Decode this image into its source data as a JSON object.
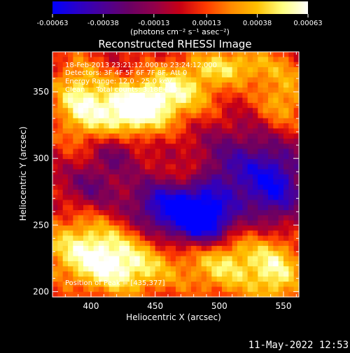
{
  "colorbar": {
    "tick_labels": [
      "-0.00063",
      "-0.00038",
      "-0.00013",
      "0.00013",
      "0.00038",
      "0.00063"
    ],
    "tick_values": [
      -0.00063,
      -0.00038,
      -0.00013,
      0.00013,
      0.00038,
      0.00063
    ],
    "range": [
      -0.00063,
      0.00063
    ],
    "units_label": "(photons cm⁻² s⁻¹ asec⁻²)",
    "colors": [
      "#0000ff",
      "#2a00c8",
      "#4b0096",
      "#6a0064",
      "#92004a",
      "#c80014",
      "#ff3a00",
      "#ff8a00",
      "#ffc000",
      "#ffff80",
      "#ffffff"
    ]
  },
  "chart_data": {
    "type": "heatmap",
    "title": "Reconstructed RHESSI Image",
    "xlabel": "Heliocentric X (arcsec)",
    "ylabel": "Heliocentric Y (arcsec)",
    "xlim": [
      370,
      562
    ],
    "ylim": [
      196,
      380
    ],
    "x_ticks": [
      400,
      450,
      500,
      550
    ],
    "y_ticks": [
      200,
      250,
      300,
      350
    ],
    "x_tick_labels": [
      "400",
      "450",
      "500",
      "550"
    ],
    "y_tick_labels": [
      "200",
      "250",
      "300",
      "350"
    ],
    "annotations": [
      "18-Feb-2013 23:21:12.000 to 23:24:12.000",
      "Detectors: 3F 4F 5F 6F 7F 8F, Att 0",
      "Energy Range: 12.0 - 25.0 keV",
      "Clean     Total counts: 3.18E+03"
    ],
    "peak_label": "Position of Peak = [435,377]",
    "peak": [
      435,
      377
    ],
    "blobs": [
      {
        "x": 430,
        "y": 335,
        "amp": 0.00063,
        "sx": 22,
        "sy": 14
      },
      {
        "x": 390,
        "y": 345,
        "amp": 0.00045,
        "sx": 15,
        "sy": 22
      },
      {
        "x": 465,
        "y": 350,
        "amp": 0.00045,
        "sx": 25,
        "sy": 14
      },
      {
        "x": 510,
        "y": 370,
        "amp": 0.0004,
        "sx": 25,
        "sy": 10
      },
      {
        "x": 550,
        "y": 345,
        "amp": 0.00035,
        "sx": 15,
        "sy": 18
      },
      {
        "x": 400,
        "y": 235,
        "amp": 0.00048,
        "sx": 30,
        "sy": 16
      },
      {
        "x": 425,
        "y": 215,
        "amp": 0.00045,
        "sx": 30,
        "sy": 14
      },
      {
        "x": 505,
        "y": 222,
        "amp": 0.00045,
        "sx": 22,
        "sy": 18
      },
      {
        "x": 545,
        "y": 215,
        "amp": 0.00045,
        "sx": 15,
        "sy": 20
      },
      {
        "x": 475,
        "y": 290,
        "amp": 0.00025,
        "sx": 10,
        "sy": 8
      },
      {
        "x": 465,
        "y": 262,
        "amp": -0.00063,
        "sx": 25,
        "sy": 15
      },
      {
        "x": 490,
        "y": 250,
        "amp": -0.00055,
        "sx": 15,
        "sy": 12
      },
      {
        "x": 520,
        "y": 290,
        "amp": -0.0004,
        "sx": 28,
        "sy": 22
      },
      {
        "x": 545,
        "y": 275,
        "amp": -0.00035,
        "sx": 14,
        "sy": 20
      },
      {
        "x": 400,
        "y": 280,
        "amp": -0.00025,
        "sx": 14,
        "sy": 12
      },
      {
        "x": 420,
        "y": 305,
        "amp": -0.00025,
        "sx": 12,
        "sy": 10
      }
    ]
  },
  "timestamp": "11-May-2022 12:53"
}
